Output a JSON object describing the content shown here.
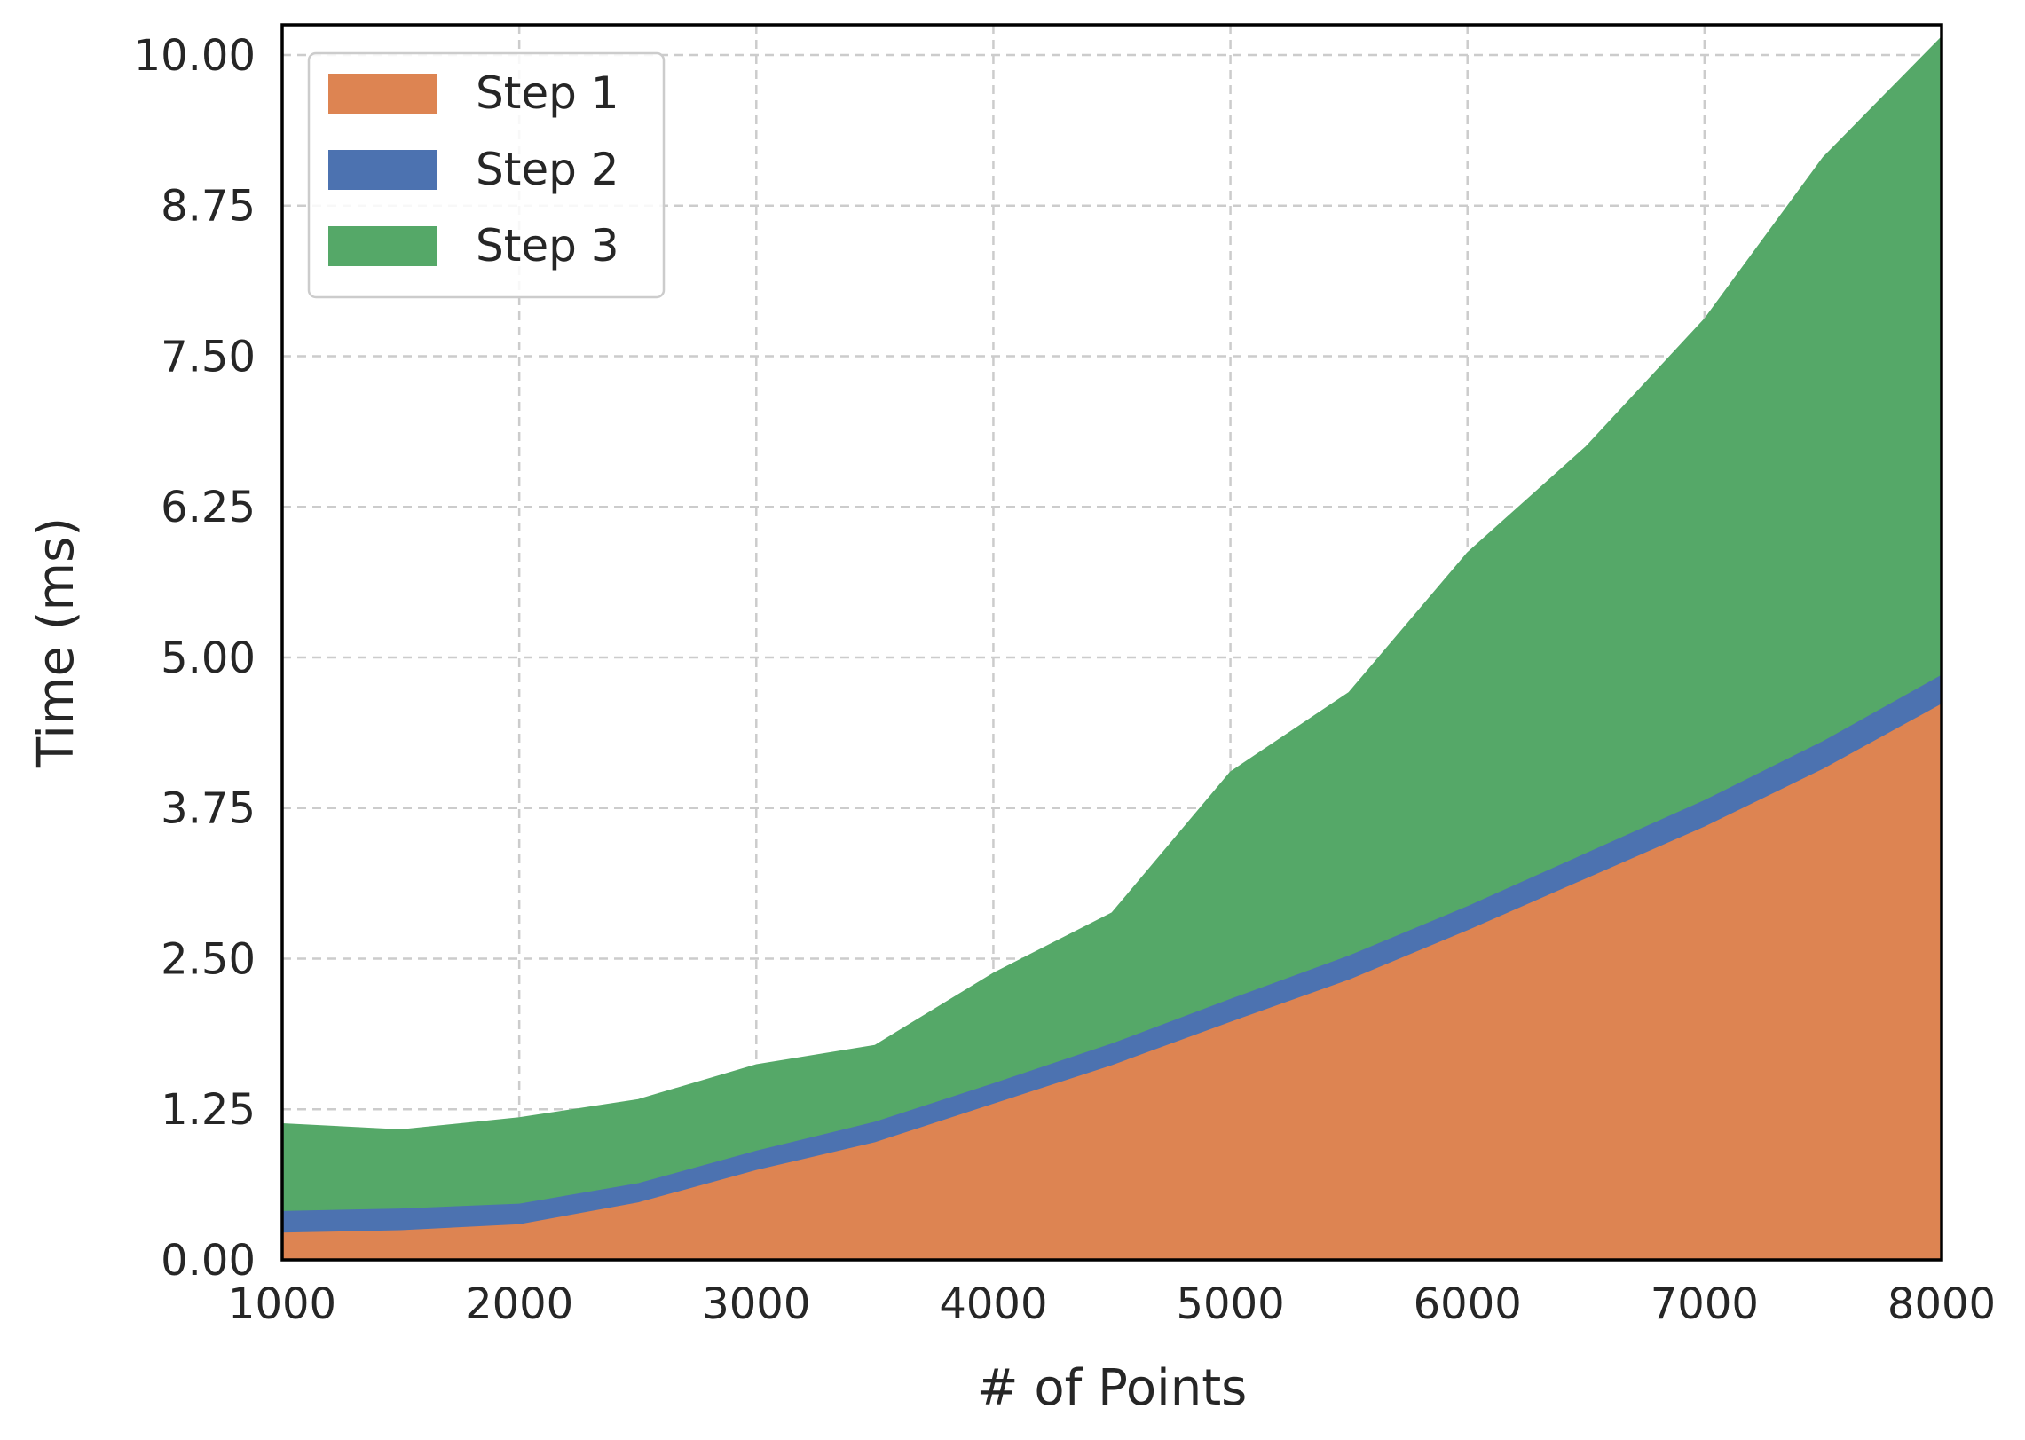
{
  "chart_data": {
    "type": "area",
    "stacked": true,
    "xlabel": "# of Points",
    "ylabel": "Time (ms)",
    "xlim": [
      1000,
      8000
    ],
    "ylim": [
      0,
      10.25
    ],
    "xticks": [
      "1000",
      "2000",
      "3000",
      "4000",
      "5000",
      "6000",
      "7000",
      "8000"
    ],
    "yticks": [
      "0.00",
      "1.25",
      "2.50",
      "3.75",
      "5.00",
      "6.25",
      "7.50",
      "8.75",
      "10.00"
    ],
    "grid": true,
    "legend_position": "top-left",
    "x": [
      1000,
      1500,
      2000,
      2500,
      3000,
      3500,
      4000,
      4500,
      5000,
      5500,
      6000,
      6500,
      7000,
      7500,
      8000
    ],
    "series": [
      {
        "name": "Step 1",
        "color": "#dd8452",
        "values": [
          0.23,
          0.25,
          0.3,
          0.48,
          0.75,
          0.98,
          1.3,
          1.62,
          1.98,
          2.33,
          2.74,
          3.17,
          3.6,
          4.08,
          4.62
        ]
      },
      {
        "name": "Step 2",
        "color": "#4c72b0",
        "values": [
          0.18,
          0.18,
          0.17,
          0.16,
          0.16,
          0.17,
          0.17,
          0.18,
          0.19,
          0.2,
          0.2,
          0.21,
          0.22,
          0.23,
          0.24
        ]
      },
      {
        "name": "Step 3",
        "color": "#55a868",
        "values": [
          0.72,
          0.65,
          0.71,
          0.69,
          0.71,
          0.63,
          0.91,
          1.08,
          1.88,
          2.18,
          2.93,
          3.37,
          3.99,
          4.84,
          5.29
        ]
      }
    ]
  }
}
